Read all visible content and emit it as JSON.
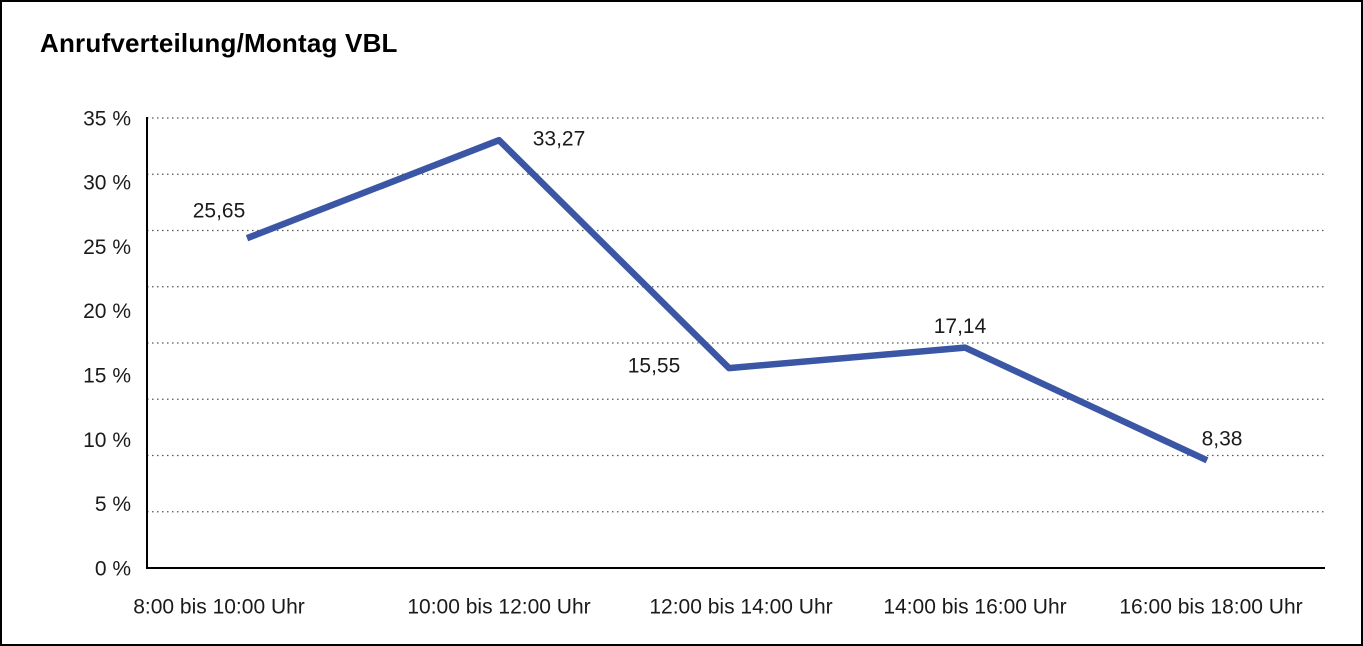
{
  "frame": {
    "background_color": "#ffffff",
    "border_color": "#000000"
  },
  "header": {
    "title": "Anrufverteilung/Montag VBL"
  },
  "chart_data": {
    "type": "line",
    "title": "Anrufverteilung/Montag VBL",
    "categories": [
      "8:00 bis 10:00 Uhr",
      "10:00 bis 12:00 Uhr",
      "12:00 bis 14:00 Uhr",
      "14:00 bis 16:00 Uhr",
      "16:00 bis 18:00 Uhr"
    ],
    "values": [
      25.65,
      33.27,
      15.55,
      17.14,
      8.38
    ],
    "value_labels": [
      "25,65",
      "33,27",
      "15,55",
      "17,14",
      "8,38"
    ],
    "y_ticks": [
      "35 %",
      "30 %",
      "25 %",
      "20 %",
      "15 %",
      "10 %",
      "5 %",
      "0 %"
    ],
    "ylim": [
      0,
      35
    ],
    "y_tick_step": 5,
    "unit": "%",
    "decimal_separator": ",",
    "xlabel": "",
    "ylabel": "",
    "grid": "horizontal-dotted",
    "legend_position": "none",
    "line_color": "#3A56A5",
    "gridline_color": "#555555",
    "axis_color": "#000000",
    "text_color": "#1a1a1a"
  }
}
